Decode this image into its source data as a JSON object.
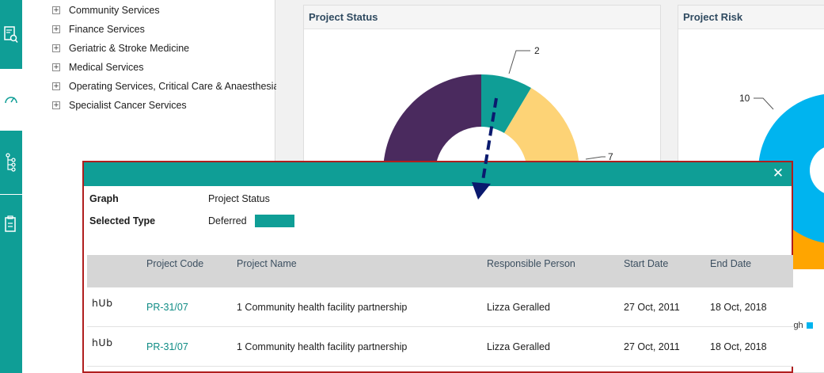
{
  "tree": {
    "items": [
      {
        "label": "Community Services"
      },
      {
        "label": "Finance Services"
      },
      {
        "label": "Geriatric & Stroke Medicine"
      },
      {
        "label": "Medical Services"
      },
      {
        "label": "Operating Services, Critical Care & Anaesthesia"
      },
      {
        "label": "Specialist Cancer Services"
      }
    ],
    "expander_glyph": "+"
  },
  "cards": {
    "status_title": "Project Status",
    "risk_title": "Project Risk"
  },
  "chart_labels": {
    "status_deferred_count": "2",
    "status_other_count": "7",
    "risk_count": "10"
  },
  "chart_data": [
    {
      "type": "pie",
      "title": "Project Status",
      "slices": [
        {
          "value": 2,
          "color": "#0f9e96",
          "label": "2"
        },
        {
          "value": 7,
          "color": "#fdd376",
          "label": "7"
        },
        {
          "color": "#4a2a5e"
        }
      ]
    },
    {
      "type": "pie",
      "title": "Project Risk",
      "slices": [
        {
          "value": 10,
          "color": "#00b4ef",
          "label": "10"
        },
        {
          "color": "#ffa500"
        }
      ],
      "legend_partial": "igh"
    }
  ],
  "modal": {
    "close_glyph": "✕",
    "graph_label": "Graph",
    "graph_value": "Project Status",
    "type_label": "Selected Type",
    "type_value": "Deferred",
    "type_color": "#0f9e96",
    "columns": [
      "Project Code",
      "Project Name",
      "Responsible Person",
      "Start Date",
      "End Date"
    ],
    "rows": [
      {
        "logo": "hUb",
        "code": "PR-31/07",
        "name": "1 Community health facility partnership",
        "person": "Lizza Geralled",
        "start": "27 Oct, 2011",
        "end": "18 Oct, 2018"
      },
      {
        "logo": "hUb",
        "code": "PR-31/07",
        "name": "1 Community health facility partnership",
        "person": "Lizza Geralled",
        "start": "27 Oct, 2011",
        "end": "18 Oct, 2018"
      }
    ]
  },
  "colors": {
    "accent": "#0f9e96",
    "modal_border": "#b01e1e",
    "arrow": "#0a1a6e"
  }
}
